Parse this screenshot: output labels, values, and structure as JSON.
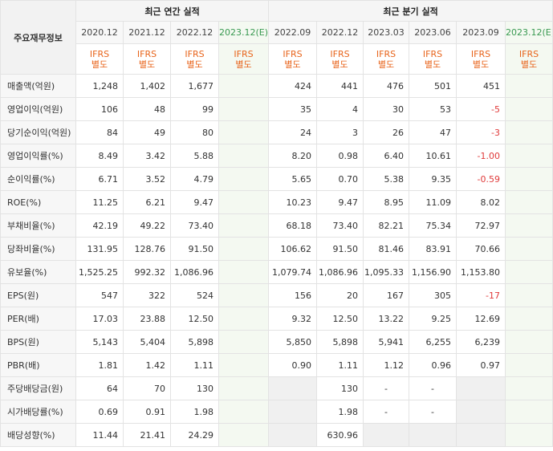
{
  "corner_label": "주요재무정보",
  "annual_header": "최근 연간 실적",
  "quarterly_header": "최근 분기 실적",
  "annual_periods": [
    "2020.12",
    "2021.12",
    "2022.12",
    "2023.12(E)"
  ],
  "quarterly_periods": [
    "2022.09",
    "2022.12",
    "2023.03",
    "2023.06",
    "2023.09",
    "2023.12(E)"
  ],
  "ifrs_top": "IFRS",
  "ifrs_bottom": "별도",
  "colors": {
    "ifrs": "#e8641b",
    "estimate_label": "#3a9a52",
    "negative": "#e03a3a",
    "estimate_bg": "#f4f9f1"
  },
  "rows": [
    {
      "label": "매출액(억원)",
      "annual": [
        "1,248",
        "1,402",
        "1,677",
        ""
      ],
      "quarterly": [
        "424",
        "441",
        "476",
        "501",
        "451",
        ""
      ]
    },
    {
      "label": "영업이익(억원)",
      "annual": [
        "106",
        "48",
        "99",
        ""
      ],
      "quarterly": [
        "35",
        "4",
        "30",
        "53",
        "-5",
        ""
      ]
    },
    {
      "label": "당기순이익(억원)",
      "annual": [
        "84",
        "49",
        "80",
        ""
      ],
      "quarterly": [
        "24",
        "3",
        "26",
        "47",
        "-3",
        ""
      ]
    },
    {
      "label": "영업이익률(%)",
      "annual": [
        "8.49",
        "3.42",
        "5.88",
        ""
      ],
      "quarterly": [
        "8.20",
        "0.98",
        "6.40",
        "10.61",
        "-1.00",
        ""
      ]
    },
    {
      "label": "순이익률(%)",
      "annual": [
        "6.71",
        "3.52",
        "4.79",
        ""
      ],
      "quarterly": [
        "5.65",
        "0.70",
        "5.38",
        "9.35",
        "-0.59",
        ""
      ]
    },
    {
      "label": "ROE(%)",
      "annual": [
        "11.25",
        "6.21",
        "9.47",
        ""
      ],
      "quarterly": [
        "10.23",
        "9.47",
        "8.95",
        "11.09",
        "8.02",
        ""
      ]
    },
    {
      "label": "부채비율(%)",
      "annual": [
        "42.19",
        "49.22",
        "73.40",
        ""
      ],
      "quarterly": [
        "68.18",
        "73.40",
        "82.21",
        "75.34",
        "72.97",
        ""
      ]
    },
    {
      "label": "당좌비율(%)",
      "annual": [
        "131.95",
        "128.76",
        "91.50",
        ""
      ],
      "quarterly": [
        "106.62",
        "91.50",
        "81.46",
        "83.91",
        "70.66",
        ""
      ]
    },
    {
      "label": "유보율(%)",
      "annual": [
        "1,525.25",
        "992.32",
        "1,086.96",
        ""
      ],
      "quarterly": [
        "1,079.74",
        "1,086.96",
        "1,095.33",
        "1,156.90",
        "1,153.80",
        ""
      ]
    },
    {
      "label": "EPS(원)",
      "annual": [
        "547",
        "322",
        "524",
        ""
      ],
      "quarterly": [
        "156",
        "20",
        "167",
        "305",
        "-17",
        ""
      ]
    },
    {
      "label": "PER(배)",
      "annual": [
        "17.03",
        "23.88",
        "12.50",
        ""
      ],
      "quarterly": [
        "9.32",
        "12.50",
        "13.22",
        "9.25",
        "12.69",
        ""
      ]
    },
    {
      "label": "BPS(원)",
      "annual": [
        "5,143",
        "5,404",
        "5,898",
        ""
      ],
      "quarterly": [
        "5,850",
        "5,898",
        "5,941",
        "6,255",
        "6,239",
        ""
      ]
    },
    {
      "label": "PBR(배)",
      "annual": [
        "1.81",
        "1.42",
        "1.11",
        ""
      ],
      "quarterly": [
        "0.90",
        "1.11",
        "1.12",
        "0.96",
        "0.97",
        ""
      ]
    },
    {
      "label": "주당배당금(원)",
      "annual": [
        "64",
        "70",
        "130",
        ""
      ],
      "quarterly": [
        "",
        "130",
        "-",
        "-",
        "",
        ""
      ]
    },
    {
      "label": "시가배당률(%)",
      "annual": [
        "0.69",
        "0.91",
        "1.98",
        ""
      ],
      "quarterly": [
        "",
        "1.98",
        "-",
        "-",
        "",
        ""
      ]
    },
    {
      "label": "배당성향(%)",
      "annual": [
        "11.44",
        "21.41",
        "24.29",
        ""
      ],
      "quarterly": [
        "",
        "630.96",
        "",
        "",
        "",
        ""
      ]
    }
  ]
}
